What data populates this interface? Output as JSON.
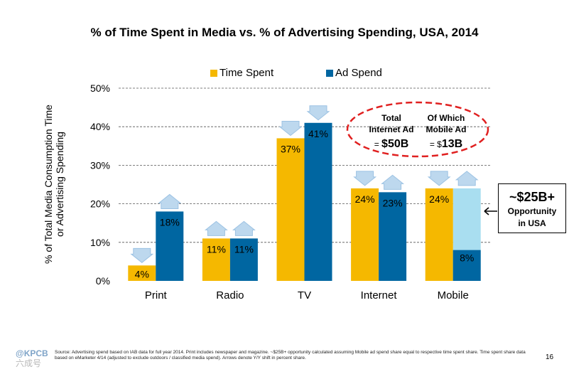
{
  "title": "% of Time Spent in Media vs. % of Advertising Spending, USA, 2014",
  "legend": {
    "time_spent": "Time Spent",
    "ad_spend": "Ad Spend"
  },
  "colors": {
    "time_spent": "#f5b800",
    "ad_spend": "#0066a1",
    "opportunity": "#a9def0",
    "arrow": "#bdd8ee",
    "ellipse": "#e02020"
  },
  "ylabel": {
    "line1": "% of Total Media Consumption Time",
    "line2": "or Advertising Spending"
  },
  "chart_data": {
    "type": "bar",
    "title": "% of Time Spent in Media vs. % of Advertising Spending, USA, 2014",
    "categories": [
      "Print",
      "Radio",
      "TV",
      "Internet",
      "Mobile"
    ],
    "series": [
      {
        "name": "Time Spent",
        "values": [
          4,
          11,
          37,
          24,
          24
        ]
      },
      {
        "name": "Ad Spend",
        "values": [
          18,
          11,
          41,
          23,
          8
        ]
      }
    ],
    "data_labels": [
      [
        "4%",
        "11%",
        "37%",
        "24%",
        "24%"
      ],
      [
        "18%",
        "11%",
        "41%",
        "23%",
        "8%"
      ]
    ],
    "arrows": [
      [
        "down",
        "up"
      ],
      [
        "up",
        "up"
      ],
      [
        "down",
        "down"
      ],
      [
        "down",
        "up"
      ],
      [
        "down",
        "up"
      ]
    ],
    "ylim": [
      0,
      50
    ],
    "yticks": [
      0,
      10,
      20,
      30,
      40,
      50
    ],
    "ytick_labels": [
      "0%",
      "10%",
      "20%",
      "30%",
      "40%",
      "50%"
    ],
    "xlabel": "",
    "ylabel": "% of Total Media Consumption Time or Advertising Spending",
    "grid": true,
    "opportunity_value": 24
  },
  "annotation": {
    "total_label": [
      "Total",
      "Internet Ad"
    ],
    "total_value_prefix": "= ",
    "total_value": "$50B",
    "mobile_label": [
      "Of Which",
      "Mobile Ad"
    ],
    "mobile_value_prefix": "= $",
    "mobile_value": "13B"
  },
  "opportunity": {
    "value": "~$25B+",
    "line1": "Opportunity",
    "line2": "in USA"
  },
  "source": "Source: Advertising spend based on IAB data for full year 2014. Print includes newspaper and magazine. ~$25B+ opportunity calculated assuming Mobile ad spend share equal to respective time spent share. Time spent share data based on eMarketer 4/14 (adjusted to exclude outdoors / classified media spend). Arrows denote Y/Y shift in percent share.",
  "page_number": "16",
  "logo": {
    "text": "@KPCB",
    "watermark": "六成号"
  }
}
